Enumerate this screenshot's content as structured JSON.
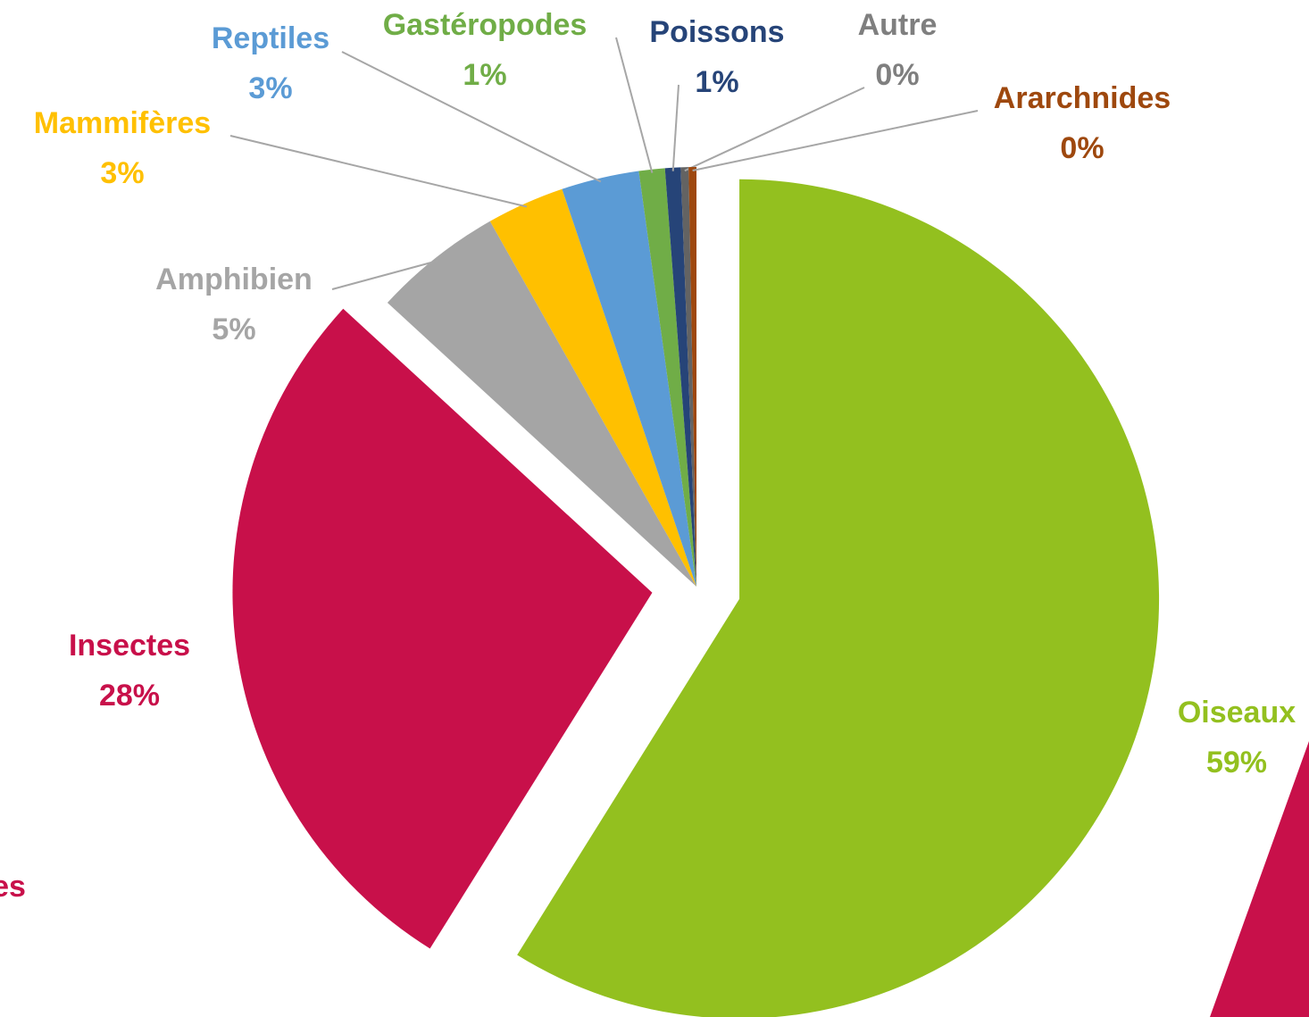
{
  "chart_data": {
    "type": "pie",
    "categories": [
      "Oiseaux",
      "Insectes",
      "Amphibien",
      "Mammifères",
      "Reptiles",
      "Gastéropodes",
      "Poissons",
      "Autre",
      "Ararchnides"
    ],
    "values": [
      59,
      28,
      5,
      3,
      3,
      1,
      0.6,
      0.3,
      0.3
    ],
    "value_labels": [
      "59%",
      "28%",
      "5%",
      "3%",
      "3%",
      "1%",
      "1%",
      "0%",
      "0%"
    ],
    "colors": [
      "#93c01f",
      "#c8104a",
      "#a5a5a5",
      "#ffc000",
      "#5b9bd5",
      "#70ad47",
      "#264478",
      "#636363",
      "#9e480e"
    ],
    "label_colors": [
      "#93c01f",
      "#c8104a",
      "#a5a5a5",
      "#ffc000",
      "#5b9bd5",
      "#70ad47",
      "#264478",
      "#7f7f7f",
      "#9e480e"
    ],
    "exploded": [
      true,
      true,
      false,
      false,
      false,
      false,
      false,
      false,
      false
    ]
  },
  "fragment_text": "es"
}
